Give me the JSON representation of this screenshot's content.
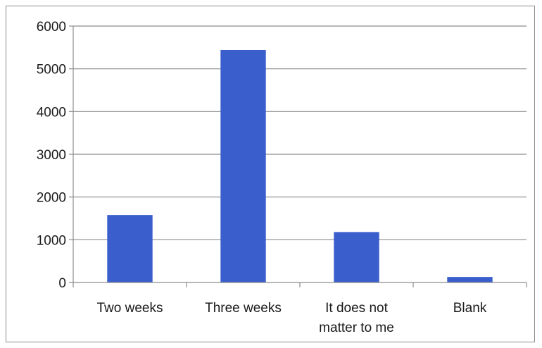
{
  "chart_data": {
    "type": "bar",
    "categories": [
      "Two weeks",
      "Three weeks",
      "It does not matter to me",
      "Blank"
    ],
    "category_label_lines": [
      [
        "Two weeks"
      ],
      [
        "Three weeks"
      ],
      [
        "It does not",
        "matter to me"
      ],
      [
        "Blank"
      ]
    ],
    "values": [
      1580,
      5440,
      1180,
      130
    ],
    "title": "",
    "xlabel": "",
    "ylabel": "",
    "ylim": [
      0,
      6000
    ],
    "yticks": [
      0,
      1000,
      2000,
      3000,
      4000,
      5000,
      6000
    ],
    "grid": true,
    "legend": "none",
    "bar_color": "#3a5fcd"
  }
}
